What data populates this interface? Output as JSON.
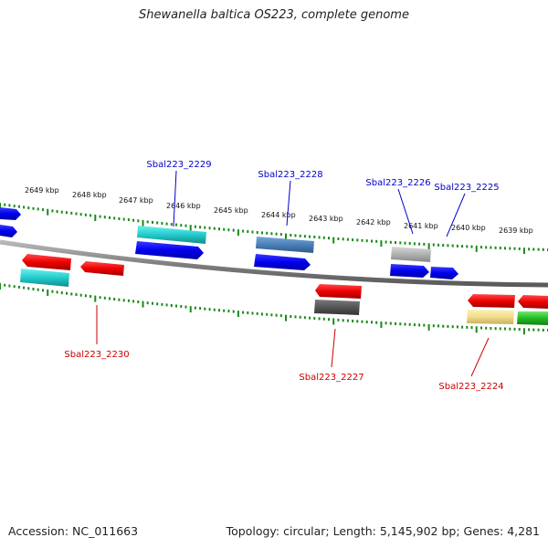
{
  "title": "Shewanella baltica OS223, complete genome",
  "footer": {
    "accession": "Accession: NC_011663",
    "summary": "Topology: circular; Length: 5,145,902 bp; Genes: 4,281"
  },
  "colors": {
    "backbone": "#8a8a8a",
    "ticks": "#1a8a1a",
    "forward_label": "#0000cc",
    "reverse_label": "#cc0000"
  },
  "scale_labels": [
    "2649 kbp",
    "2648 kbp",
    "2647 kbp",
    "2646 kbp",
    "2645 kbp",
    "2644 kbp",
    "2643 kbp",
    "2642 kbp",
    "2641 kbp",
    "2640 kbp",
    "2639 kbp"
  ],
  "forward_genes": [
    "Sbal223_2229",
    "Sbal223_2228",
    "Sbal223_2226",
    "Sbal223_2225"
  ],
  "reverse_genes": [
    "Sbal223_2230",
    "Sbal223_2227",
    "Sbal223_2224"
  ]
}
